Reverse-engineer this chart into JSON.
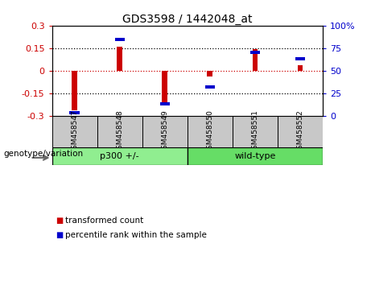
{
  "title": "GDS3598 / 1442048_at",
  "samples": [
    "GSM458547",
    "GSM458548",
    "GSM458549",
    "GSM458550",
    "GSM458551",
    "GSM458552"
  ],
  "red_values": [
    -0.265,
    0.16,
    -0.22,
    -0.04,
    0.145,
    0.035
  ],
  "blue_values": [
    3,
    85,
    13,
    32,
    70,
    63
  ],
  "ylim_left": [
    -0.3,
    0.3
  ],
  "ylim_right": [
    0,
    100
  ],
  "yticks_left": [
    -0.3,
    -0.15,
    0,
    0.15,
    0.3
  ],
  "yticks_right": [
    0,
    25,
    50,
    75,
    100
  ],
  "ytick_labels_left": [
    "-0.3",
    "-0.15",
    "0",
    "0.15",
    "0.3"
  ],
  "ytick_labels_right": [
    "0",
    "25",
    "50",
    "75",
    "100%"
  ],
  "red_color": "#CC0000",
  "blue_color": "#0000CC",
  "bar_width": 0.12,
  "genotype_label": "genotype/variation",
  "legend_red": "transformed count",
  "legend_blue": "percentile rank within the sample",
  "left_label_color": "#CC0000",
  "right_label_color": "#0000CC",
  "header_bg": "#C8C8C8",
  "group1_label": "p300 +/-",
  "group2_label": "wild-type",
  "group1_color": "#90EE90",
  "group2_color": "#66DD66",
  "hline_colors": [
    "black",
    "#CC0000",
    "black"
  ],
  "hline_values": [
    -0.15,
    0,
    0.15
  ]
}
